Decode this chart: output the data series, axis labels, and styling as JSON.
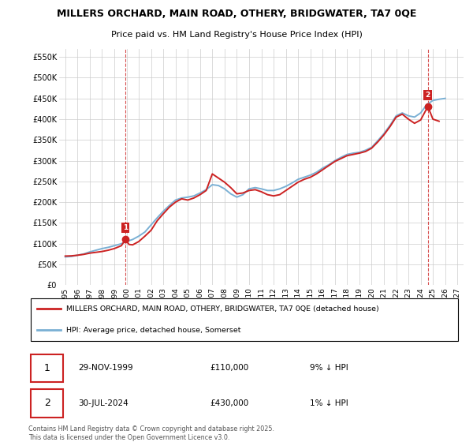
{
  "title": "MILLERS ORCHARD, MAIN ROAD, OTHERY, BRIDGWATER, TA7 0QE",
  "subtitle": "Price paid vs. HM Land Registry's House Price Index (HPI)",
  "yticks": [
    0,
    50000,
    100000,
    150000,
    200000,
    250000,
    300000,
    350000,
    400000,
    450000,
    500000,
    550000
  ],
  "ytick_labels": [
    "£0",
    "£50K",
    "£100K",
    "£150K",
    "£200K",
    "£250K",
    "£300K",
    "£350K",
    "£400K",
    "£450K",
    "£500K",
    "£550K"
  ],
  "xlim": [
    1994.5,
    2027.5
  ],
  "ylim": [
    0,
    570000
  ],
  "hpi_color": "#7ab0d4",
  "price_color": "#cc2222",
  "marker1_x": 1999.91,
  "marker1_y": 110000,
  "marker2_x": 2024.58,
  "marker2_y": 430000,
  "annotation1": {
    "label": "1",
    "date": "29-NOV-1999",
    "price": "£110,000",
    "hpi_diff": "9% ↓ HPI"
  },
  "annotation2": {
    "label": "2",
    "date": "30-JUL-2024",
    "price": "£430,000",
    "hpi_diff": "1% ↓ HPI"
  },
  "legend_line1": "MILLERS ORCHARD, MAIN ROAD, OTHERY, BRIDGWATER, TA7 0QE (detached house)",
  "legend_line2": "HPI: Average price, detached house, Somerset",
  "footer": "Contains HM Land Registry data © Crown copyright and database right 2025.\nThis data is licensed under the Open Government Licence v3.0.",
  "hpi_data": [
    [
      1995.0,
      68000
    ],
    [
      1995.5,
      69000
    ],
    [
      1996.0,
      72000
    ],
    [
      1996.5,
      75000
    ],
    [
      1997.0,
      80000
    ],
    [
      1997.5,
      84000
    ],
    [
      1998.0,
      88000
    ],
    [
      1998.5,
      91000
    ],
    [
      1999.0,
      95000
    ],
    [
      1999.5,
      99000
    ],
    [
      2000.0,
      105000
    ],
    [
      2000.5,
      110000
    ],
    [
      2001.0,
      118000
    ],
    [
      2001.5,
      128000
    ],
    [
      2002.0,
      145000
    ],
    [
      2002.5,
      162000
    ],
    [
      2003.0,
      178000
    ],
    [
      2003.5,
      192000
    ],
    [
      2004.0,
      205000
    ],
    [
      2004.5,
      210000
    ],
    [
      2005.0,
      212000
    ],
    [
      2005.5,
      215000
    ],
    [
      2006.0,
      222000
    ],
    [
      2006.5,
      230000
    ],
    [
      2007.0,
      242000
    ],
    [
      2007.5,
      240000
    ],
    [
      2008.0,
      232000
    ],
    [
      2008.5,
      220000
    ],
    [
      2009.0,
      212000
    ],
    [
      2009.5,
      218000
    ],
    [
      2010.0,
      232000
    ],
    [
      2010.5,
      235000
    ],
    [
      2011.0,
      232000
    ],
    [
      2011.5,
      228000
    ],
    [
      2012.0,
      228000
    ],
    [
      2012.5,
      232000
    ],
    [
      2013.0,
      238000
    ],
    [
      2013.5,
      246000
    ],
    [
      2014.0,
      255000
    ],
    [
      2014.5,
      260000
    ],
    [
      2015.0,
      265000
    ],
    [
      2015.5,
      272000
    ],
    [
      2016.0,
      282000
    ],
    [
      2016.5,
      290000
    ],
    [
      2017.0,
      300000
    ],
    [
      2017.5,
      308000
    ],
    [
      2018.0,
      315000
    ],
    [
      2018.5,
      318000
    ],
    [
      2019.0,
      320000
    ],
    [
      2019.5,
      325000
    ],
    [
      2020.0,
      332000
    ],
    [
      2020.5,
      348000
    ],
    [
      2021.0,
      365000
    ],
    [
      2021.5,
      385000
    ],
    [
      2022.0,
      408000
    ],
    [
      2022.5,
      415000
    ],
    [
      2023.0,
      408000
    ],
    [
      2023.5,
      405000
    ],
    [
      2024.0,
      415000
    ],
    [
      2024.5,
      435000
    ],
    [
      2025.0,
      445000
    ],
    [
      2025.5,
      448000
    ],
    [
      2026.0,
      450000
    ]
  ],
  "price_data": [
    [
      1995.0,
      70000
    ],
    [
      1995.5,
      70500
    ],
    [
      1996.0,
      72000
    ],
    [
      1996.5,
      74000
    ],
    [
      1997.0,
      77000
    ],
    [
      1997.5,
      79000
    ],
    [
      1998.0,
      81000
    ],
    [
      1998.5,
      84000
    ],
    [
      1999.0,
      88000
    ],
    [
      1999.58,
      95000
    ],
    [
      1999.91,
      110000
    ],
    [
      2000.2,
      98000
    ],
    [
      2000.5,
      97000
    ],
    [
      2001.0,
      105000
    ],
    [
      2001.5,
      118000
    ],
    [
      2002.0,
      132000
    ],
    [
      2002.5,
      155000
    ],
    [
      2003.0,
      172000
    ],
    [
      2003.5,
      188000
    ],
    [
      2004.0,
      200000
    ],
    [
      2004.5,
      208000
    ],
    [
      2005.0,
      205000
    ],
    [
      2005.5,
      210000
    ],
    [
      2006.0,
      218000
    ],
    [
      2006.5,
      228000
    ],
    [
      2007.0,
      268000
    ],
    [
      2007.5,
      258000
    ],
    [
      2008.0,
      248000
    ],
    [
      2008.5,
      235000
    ],
    [
      2009.0,
      220000
    ],
    [
      2009.5,
      222000
    ],
    [
      2010.0,
      228000
    ],
    [
      2010.5,
      230000
    ],
    [
      2011.0,
      225000
    ],
    [
      2011.5,
      218000
    ],
    [
      2012.0,
      215000
    ],
    [
      2012.5,
      218000
    ],
    [
      2013.0,
      228000
    ],
    [
      2013.5,
      238000
    ],
    [
      2014.0,
      248000
    ],
    [
      2014.5,
      255000
    ],
    [
      2015.0,
      260000
    ],
    [
      2015.5,
      268000
    ],
    [
      2016.0,
      278000
    ],
    [
      2016.5,
      288000
    ],
    [
      2017.0,
      298000
    ],
    [
      2017.5,
      305000
    ],
    [
      2018.0,
      312000
    ],
    [
      2018.5,
      315000
    ],
    [
      2019.0,
      318000
    ],
    [
      2019.5,
      322000
    ],
    [
      2020.0,
      330000
    ],
    [
      2020.5,
      345000
    ],
    [
      2021.0,
      362000
    ],
    [
      2021.5,
      382000
    ],
    [
      2022.0,
      405000
    ],
    [
      2022.5,
      412000
    ],
    [
      2023.0,
      400000
    ],
    [
      2023.5,
      390000
    ],
    [
      2024.0,
      398000
    ],
    [
      2024.58,
      430000
    ],
    [
      2024.8,
      415000
    ],
    [
      2025.0,
      400000
    ],
    [
      2025.5,
      395000
    ]
  ]
}
